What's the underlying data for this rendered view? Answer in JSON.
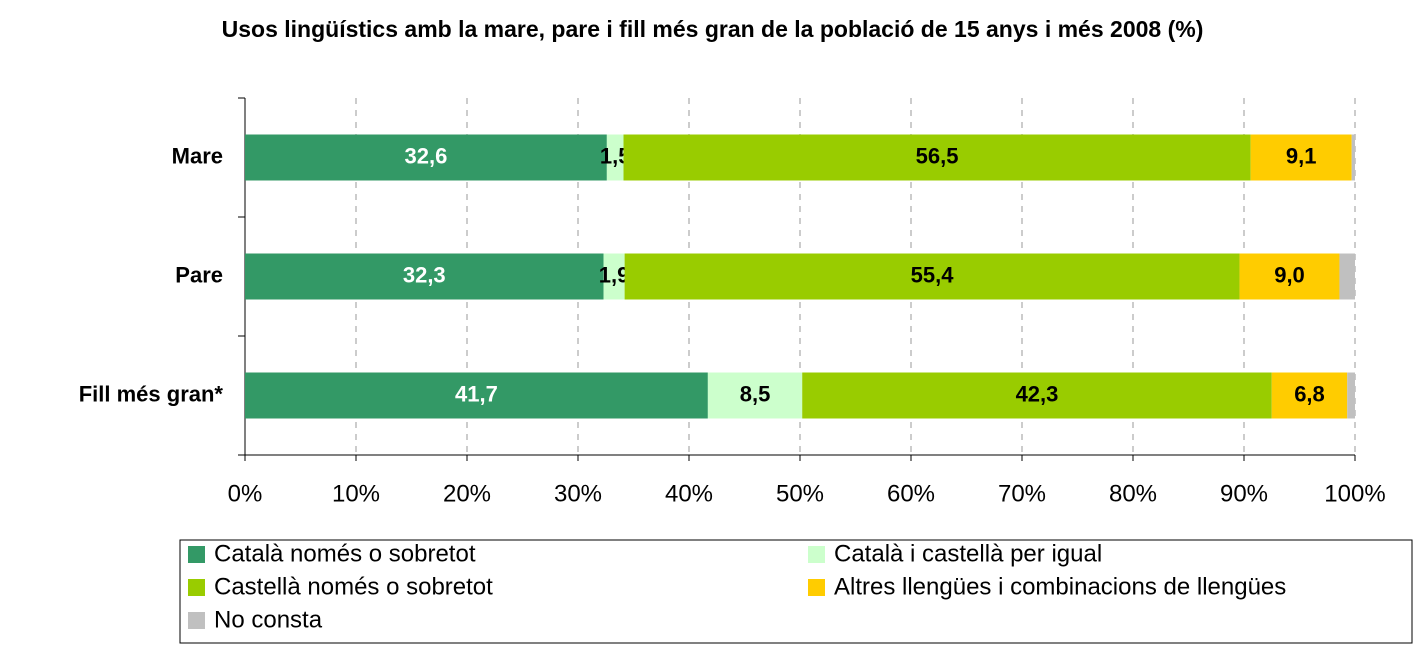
{
  "chart_data": {
    "type": "stacked-barh",
    "title": "Usos lingüístics amb la mare, pare i fill més gran de la població de 15 anys i més 2008 (%)",
    "categories": [
      "Mare",
      "Pare",
      "Fill més gran*"
    ],
    "series": [
      {
        "name": "Català només o sobretot",
        "color": "#339966",
        "label_color": "#ffffff",
        "values": [
          32.6,
          32.3,
          41.7
        ],
        "value_labels": [
          "32,6",
          "32,3",
          "41,7"
        ]
      },
      {
        "name": "Català i castellà per igual",
        "color": "#ccffcc",
        "label_color": "#000000",
        "values": [
          1.5,
          1.9,
          8.5
        ],
        "value_labels": [
          "1,5",
          "1,9",
          "8,5"
        ]
      },
      {
        "name": "Castellà només o sobretot",
        "color": "#99cc00",
        "label_color": "#000000",
        "values": [
          56.5,
          55.4,
          42.3
        ],
        "value_labels": [
          "56,5",
          "55,4",
          "42,3"
        ]
      },
      {
        "name": "Altres llengües i combinacions de llengües",
        "color": "#ffcc00",
        "label_color": "#000000",
        "values": [
          9.1,
          9.0,
          6.8
        ],
        "value_labels": [
          "9,1",
          "9,0",
          "6,8"
        ]
      },
      {
        "name": "No consta",
        "color": "#c0c0c0",
        "values": [
          0.3,
          1.4,
          0.7
        ]
      }
    ],
    "xlim": [
      0,
      100
    ],
    "xticks": [
      {
        "value": 0,
        "label": "0%"
      },
      {
        "value": 10,
        "label": "10%"
      },
      {
        "value": 20,
        "label": "20%"
      },
      {
        "value": 30,
        "label": "30%"
      },
      {
        "value": 40,
        "label": "40%"
      },
      {
        "value": 50,
        "label": "50%"
      },
      {
        "value": 60,
        "label": "60%"
      },
      {
        "value": 70,
        "label": "70%"
      },
      {
        "value": 80,
        "label": "80%"
      },
      {
        "value": 90,
        "label": "90%"
      },
      {
        "value": 100,
        "label": "100%"
      }
    ],
    "grid": true,
    "legend": "bottom"
  }
}
